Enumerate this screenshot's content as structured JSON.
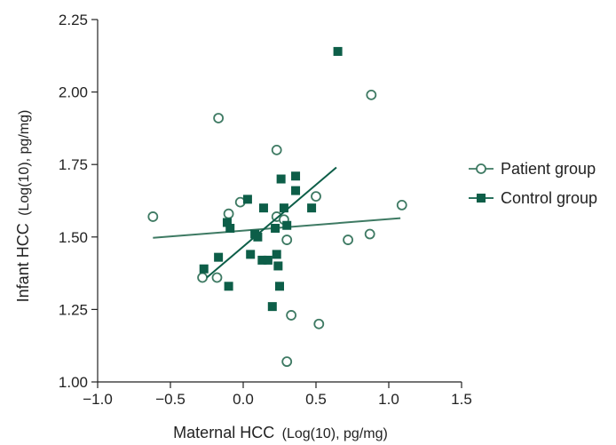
{
  "chart_data": {
    "type": "scatter",
    "title": "",
    "xlabel": "Maternal HCC",
    "xlabel_unit": "(Log(10), pg/mg)",
    "ylabel": "Infant HCC",
    "ylabel_unit": "(Log(10), pg/mg)",
    "xlim": [
      -1.0,
      1.5
    ],
    "ylim": [
      1.0,
      2.25
    ],
    "x_ticks": [
      -1.0,
      -0.5,
      0.0,
      0.5,
      1.0,
      1.5
    ],
    "x_tick_labels": [
      "−1.0",
      "−0.5",
      "0.0",
      "0.5",
      "1.0",
      "1.5"
    ],
    "y_ticks": [
      1.0,
      1.25,
      1.5,
      1.75,
      2.0,
      2.25
    ],
    "y_tick_labels": [
      "1.00",
      "1.25",
      "1.50",
      "1.75",
      "2.00",
      "2.25"
    ],
    "grid": false,
    "legend_position": "right",
    "series": [
      {
        "name": "Patient group",
        "marker": "open-circle",
        "color": "#3e7a63",
        "points": [
          [
            -0.62,
            1.57
          ],
          [
            -0.28,
            1.36
          ],
          [
            -0.18,
            1.36
          ],
          [
            -0.17,
            1.91
          ],
          [
            -0.1,
            1.58
          ],
          [
            -0.02,
            1.62
          ],
          [
            0.23,
            1.8
          ],
          [
            0.23,
            1.57
          ],
          [
            0.28,
            1.56
          ],
          [
            0.3,
            1.49
          ],
          [
            0.3,
            1.07
          ],
          [
            0.33,
            1.23
          ],
          [
            0.5,
            1.64
          ],
          [
            0.52,
            1.2
          ],
          [
            0.72,
            1.49
          ],
          [
            0.87,
            1.51
          ],
          [
            0.88,
            1.99
          ],
          [
            1.09,
            1.61
          ]
        ],
        "fit_line": [
          [
            -0.62,
            1.497
          ],
          [
            1.08,
            1.565
          ]
        ]
      },
      {
        "name": "Control group",
        "marker": "filled-square",
        "color": "#0d5e48",
        "points": [
          [
            -0.27,
            1.39
          ],
          [
            -0.17,
            1.43
          ],
          [
            -0.11,
            1.55
          ],
          [
            -0.1,
            1.33
          ],
          [
            -0.09,
            1.53
          ],
          [
            0.03,
            1.63
          ],
          [
            0.05,
            1.44
          ],
          [
            0.08,
            1.51
          ],
          [
            0.1,
            1.5
          ],
          [
            0.13,
            1.42
          ],
          [
            0.14,
            1.6
          ],
          [
            0.17,
            1.42
          ],
          [
            0.2,
            1.26
          ],
          [
            0.22,
            1.53
          ],
          [
            0.23,
            1.44
          ],
          [
            0.24,
            1.4
          ],
          [
            0.25,
            1.33
          ],
          [
            0.26,
            1.7
          ],
          [
            0.28,
            1.6
          ],
          [
            0.3,
            1.54
          ],
          [
            0.36,
            1.66
          ],
          [
            0.36,
            1.71
          ],
          [
            0.47,
            1.6
          ],
          [
            0.65,
            2.14
          ]
        ],
        "fit_line": [
          [
            -0.25,
            1.36
          ],
          [
            0.64,
            1.74
          ]
        ]
      }
    ]
  }
}
